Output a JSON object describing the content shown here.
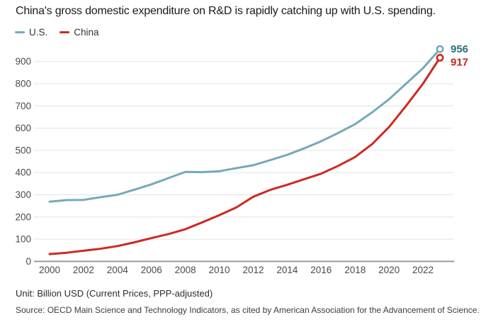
{
  "title": "China's gross domestic expenditure on R&D is rapidly catching up with U.S. spending.",
  "legend": [
    {
      "label": "U.S.",
      "color": "#74aab9"
    },
    {
      "label": "China",
      "color": "#cd2a20"
    }
  ],
  "chart_data": {
    "type": "line",
    "title": "China's gross domestic expenditure on R&D is rapidly catching up with U.S. spending.",
    "xlabel": "",
    "ylabel": "Billion USD (Current Prices, PPP-adjusted)",
    "grid": true,
    "legend_position": "top-left",
    "ylim": [
      0,
      950
    ],
    "yticks": [
      0,
      100,
      200,
      300,
      400,
      500,
      600,
      700,
      800,
      900
    ],
    "xticks": [
      2000,
      2002,
      2004,
      2006,
      2008,
      2010,
      2012,
      2014,
      2016,
      2018,
      2020,
      2022
    ],
    "x": [
      2000,
      2001,
      2002,
      2003,
      2004,
      2005,
      2006,
      2007,
      2008,
      2009,
      2010,
      2011,
      2012,
      2013,
      2014,
      2015,
      2016,
      2017,
      2018,
      2019,
      2020,
      2021,
      2022,
      2023
    ],
    "series": [
      {
        "name": "U.S.",
        "color": "#74aab9",
        "label_color": "#2e6e7e",
        "end_label": "956",
        "values": [
          269,
          276,
          277,
          289,
          300,
          323,
          347,
          375,
          403,
          402,
          406,
          420,
          433,
          456,
          480,
          509,
          541,
          578,
          618,
          671,
          730,
          800,
          870,
          956
        ]
      },
      {
        "name": "China",
        "color": "#cd2a20",
        "label_color": "#c0281e",
        "end_label": "917",
        "values": [
          33,
          39,
          48,
          57,
          69,
          86,
          105,
          123,
          145,
          176,
          208,
          243,
          291,
          322,
          345,
          370,
          395,
          430,
          470,
          528,
          605,
          700,
          800,
          917
        ]
      }
    ]
  },
  "footer": {
    "unit": "Unit: Billion USD (Current Prices, PPP-adjusted)",
    "source": "Source: OECD Main Science and Technology Indicators, as cited by American Association for the Advancement of Science."
  }
}
